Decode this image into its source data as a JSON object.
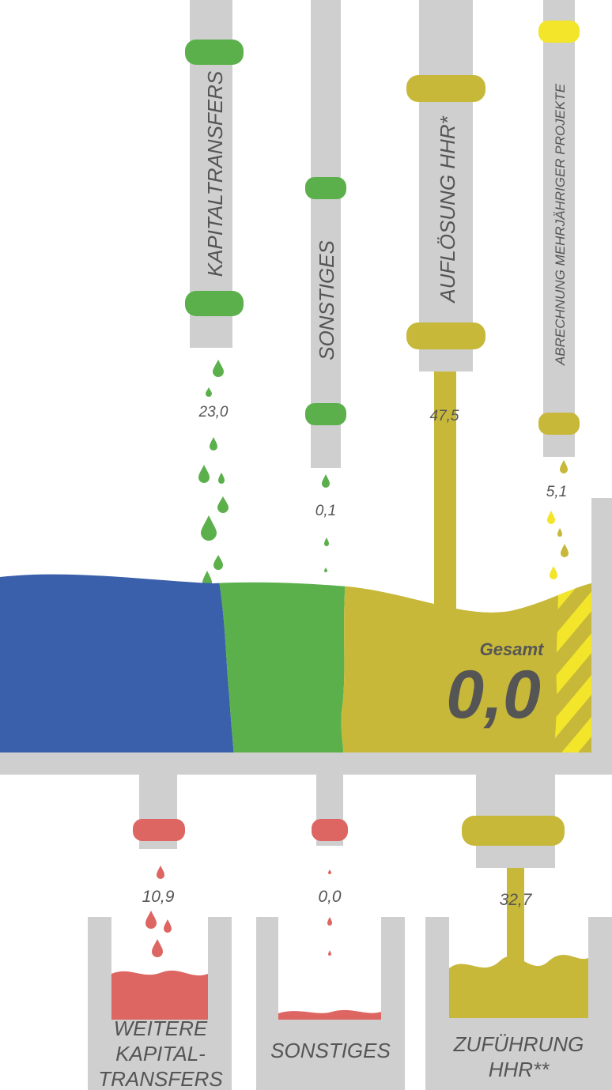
{
  "colors": {
    "pipe": "#cfcfcf",
    "green": "#5bb04b",
    "olive": "#c7b83a",
    "yellow": "#f3e52a",
    "blue": "#3a5fab",
    "red": "#dd6562",
    "text": "#555555"
  },
  "inflows": [
    {
      "id": "kapitaltransfers",
      "label": "KAPITALTRANSFERS",
      "value": "23,0",
      "color": "green"
    },
    {
      "id": "sonstiges",
      "label": "SONSTIGES",
      "value": "0,1",
      "color": "green"
    },
    {
      "id": "aufloesung",
      "label": "AUFLÖSUNG HHR*",
      "value": "47,5",
      "color": "olive"
    },
    {
      "id": "abrechnung",
      "label": "ABRECHNUNG MEHRJÄHRIGER PROJEKTE",
      "value": "5,1",
      "color": "yellow"
    }
  ],
  "total": {
    "label": "Gesamt",
    "value": "0,0"
  },
  "outflows": [
    {
      "id": "weitere",
      "label_lines": [
        "WEITERE",
        "KAPITAL-",
        "TRANSFERS"
      ],
      "value": "10,9",
      "color": "red"
    },
    {
      "id": "sonstiges_out",
      "label_lines": [
        "SONSTIGES"
      ],
      "value": "0,0",
      "color": "red"
    },
    {
      "id": "zufuehrung",
      "label_lines": [
        "ZUFÜHRUNG",
        "HHR**"
      ],
      "value": "32,7",
      "color": "olive"
    }
  ]
}
